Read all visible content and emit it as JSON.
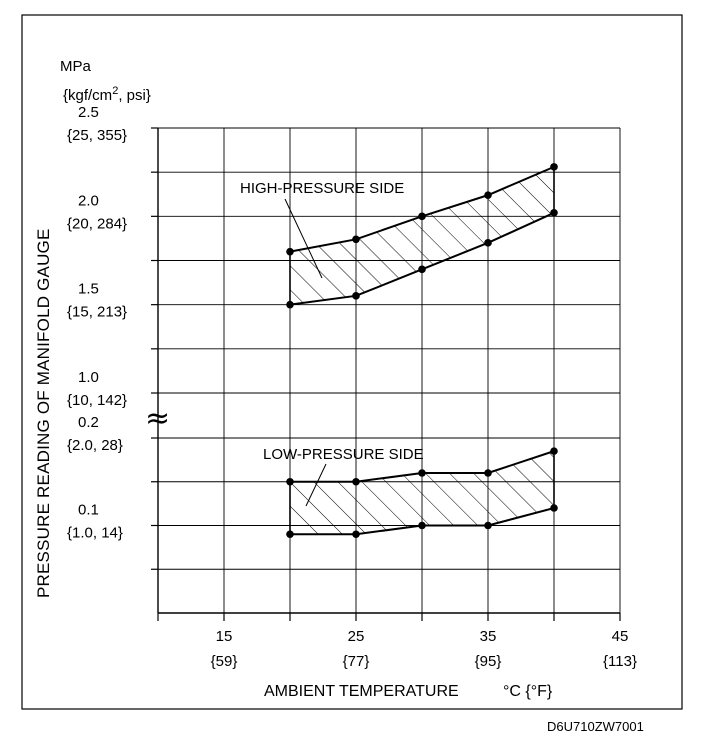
{
  "chart_data": {
    "type": "area",
    "y_unit_lines": [
      "MPa",
      "{kgf/cm",
      "2",
      ", psi}"
    ],
    "ylabel": "PRESSURE READING OF MANIFOLD GAUGE",
    "xlabel": "AMBIENT TEMPERATURE",
    "x_unit": "°C {°F}",
    "xlim": [
      10,
      45
    ],
    "x_ticks": [
      {
        "value": 15,
        "c": "15",
        "f": "{59}"
      },
      {
        "value": 25,
        "c": "25",
        "f": "{77}"
      },
      {
        "value": 35,
        "c": "35",
        "f": "{95}"
      },
      {
        "value": 45,
        "c": "45",
        "f": "{113}"
      }
    ],
    "axis_break": "≈",
    "axis_break_marker": "≈",
    "upper_scale": {
      "ylim": [
        0.9,
        2.5
      ]
    },
    "lower_scale": {
      "ylim": [
        0.0,
        0.2
      ]
    },
    "y_ticks_upper": [
      {
        "value": 2.5,
        "main": "2.5",
        "sub": "{25, 355}"
      },
      {
        "value": 2.0,
        "main": "2.0",
        "sub": "{20, 284}"
      },
      {
        "value": 1.5,
        "main": "1.5",
        "sub": "{15, 213}"
      },
      {
        "value": 1.0,
        "main": "1.0",
        "sub": "{10, 142}"
      }
    ],
    "y_ticks_lower": [
      {
        "value": 0.2,
        "main": "0.2",
        "sub": "{2.0, 28}"
      },
      {
        "value": 0.1,
        "main": "0.1",
        "sub": "{1.0, 14}"
      }
    ],
    "series": [
      {
        "name": "HIGH-PRESSURE SIDE",
        "scale": "upper",
        "x": [
          20,
          25,
          30,
          35,
          40
        ],
        "upper": [
          1.8,
          1.87,
          2.0,
          2.12,
          2.28
        ],
        "lower": [
          1.5,
          1.55,
          1.7,
          1.85,
          2.02
        ]
      },
      {
        "name": "LOW-PRESSURE SIDE",
        "scale": "lower",
        "x": [
          20,
          25,
          30,
          35,
          40
        ],
        "upper": [
          0.15,
          0.15,
          0.16,
          0.16,
          0.185
        ],
        "lower": [
          0.09,
          0.09,
          0.1,
          0.1,
          0.12
        ]
      }
    ],
    "grid": true
  },
  "figure_code": "D6U710ZW7001"
}
